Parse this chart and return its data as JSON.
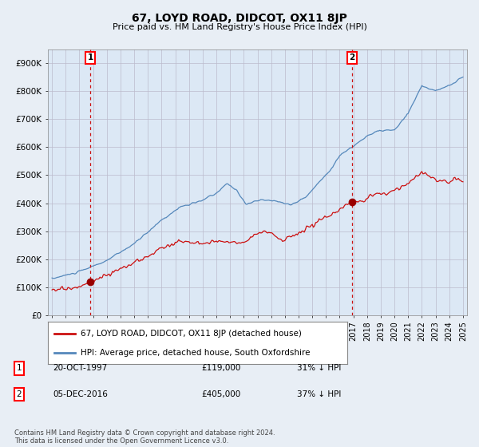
{
  "title": "67, LOYD ROAD, DIDCOT, OX11 8JP",
  "subtitle": "Price paid vs. HM Land Registry's House Price Index (HPI)",
  "ylabel_ticks": [
    "£0",
    "£100K",
    "£200K",
    "£300K",
    "£400K",
    "£500K",
    "£600K",
    "£700K",
    "£800K",
    "£900K"
  ],
  "ylim": [
    0,
    950000
  ],
  "xlim_start": 1994.7,
  "xlim_end": 2025.3,
  "bg_color": "#e8eef5",
  "plot_bg": "#dce8f5",
  "hpi_color": "#5588bb",
  "price_color": "#cc1111",
  "vline_color": "#cc1111",
  "marker_color": "#990000",
  "transaction1_x": 1997.8,
  "transaction1_y": 119000,
  "transaction1_label": "1",
  "transaction2_x": 2016.92,
  "transaction2_y": 405000,
  "transaction2_label": "2",
  "legend_label1": "67, LOYD ROAD, DIDCOT, OX11 8JP (detached house)",
  "legend_label2": "HPI: Average price, detached house, South Oxfordshire",
  "table_row1_num": "1",
  "table_row1_date": "20-OCT-1997",
  "table_row1_price": "£119,000",
  "table_row1_hpi": "31% ↓ HPI",
  "table_row2_num": "2",
  "table_row2_date": "05-DEC-2016",
  "table_row2_price": "£405,000",
  "table_row2_hpi": "37% ↓ HPI",
  "footer": "Contains HM Land Registry data © Crown copyright and database right 2024.\nThis data is licensed under the Open Government Licence v3.0.",
  "xlabel_years": [
    1995,
    1996,
    1997,
    1998,
    1999,
    2000,
    2001,
    2002,
    2003,
    2004,
    2005,
    2006,
    2007,
    2008,
    2009,
    2010,
    2011,
    2012,
    2013,
    2014,
    2015,
    2016,
    2017,
    2018,
    2019,
    2020,
    2021,
    2022,
    2023,
    2024,
    2025
  ]
}
